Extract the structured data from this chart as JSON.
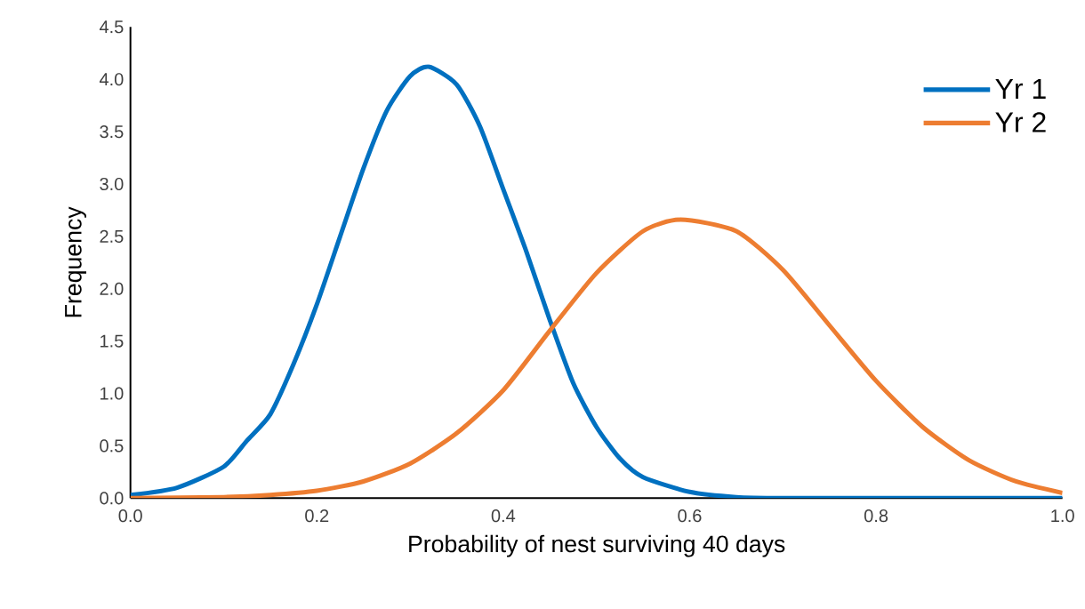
{
  "chart_data": {
    "type": "line",
    "xlabel": "Probability of nest surviving 40 days",
    "ylabel": "Frequency",
    "xlim": [
      0,
      1
    ],
    "ylim": [
      0,
      4.5
    ],
    "xticks": [
      {
        "value": 0,
        "label": "0.0"
      },
      {
        "value": 0.2,
        "label": "0.2"
      },
      {
        "value": 0.4,
        "label": "0.4"
      },
      {
        "value": 0.6,
        "label": "0.6"
      },
      {
        "value": 0.8,
        "label": "0.8"
      },
      {
        "value": 1,
        "label": "1.0"
      }
    ],
    "yticks": [
      {
        "value": 0,
        "label": "0.0"
      },
      {
        "value": 0.5,
        "label": "0.5"
      },
      {
        "value": 1,
        "label": "1.0"
      },
      {
        "value": 1.5,
        "label": "1.5"
      },
      {
        "value": 2,
        "label": "2.0"
      },
      {
        "value": 2.5,
        "label": "2.5"
      },
      {
        "value": 3,
        "label": "3.0"
      },
      {
        "value": 3.5,
        "label": "3.5"
      },
      {
        "value": 4,
        "label": "4.0"
      },
      {
        "value": 4.5,
        "label": "4.5"
      }
    ],
    "legend": "top right",
    "series": [
      {
        "name": "Yr 1",
        "color": "#0070c0",
        "x": [
          0,
          0.05,
          0.1,
          0.125,
          0.15,
          0.175,
          0.2,
          0.225,
          0.25,
          0.275,
          0.3,
          0.32,
          0.35,
          0.375,
          0.4,
          0.425,
          0.45,
          0.475,
          0.5,
          0.525,
          0.55,
          0.6,
          0.65,
          0.7,
          0.8,
          0.9,
          1.0
        ],
        "values": [
          0.03,
          0.1,
          0.3,
          0.55,
          0.8,
          1.28,
          1.85,
          2.5,
          3.15,
          3.7,
          4.03,
          4.12,
          3.95,
          3.55,
          2.95,
          2.35,
          1.7,
          1.1,
          0.68,
          0.38,
          0.2,
          0.06,
          0.01,
          0,
          0,
          0,
          0
        ]
      },
      {
        "name": "Yr 2",
        "color": "#ed7d31",
        "x": [
          0,
          0.1,
          0.15,
          0.2,
          0.25,
          0.3,
          0.35,
          0.4,
          0.45,
          0.5,
          0.55,
          0.59,
          0.65,
          0.7,
          0.75,
          0.8,
          0.85,
          0.9,
          0.95,
          1.0
        ],
        "values": [
          0,
          0.01,
          0.03,
          0.07,
          0.16,
          0.33,
          0.62,
          1.03,
          1.6,
          2.15,
          2.55,
          2.66,
          2.55,
          2.18,
          1.65,
          1.12,
          0.68,
          0.36,
          0.16,
          0.05
        ]
      }
    ]
  }
}
